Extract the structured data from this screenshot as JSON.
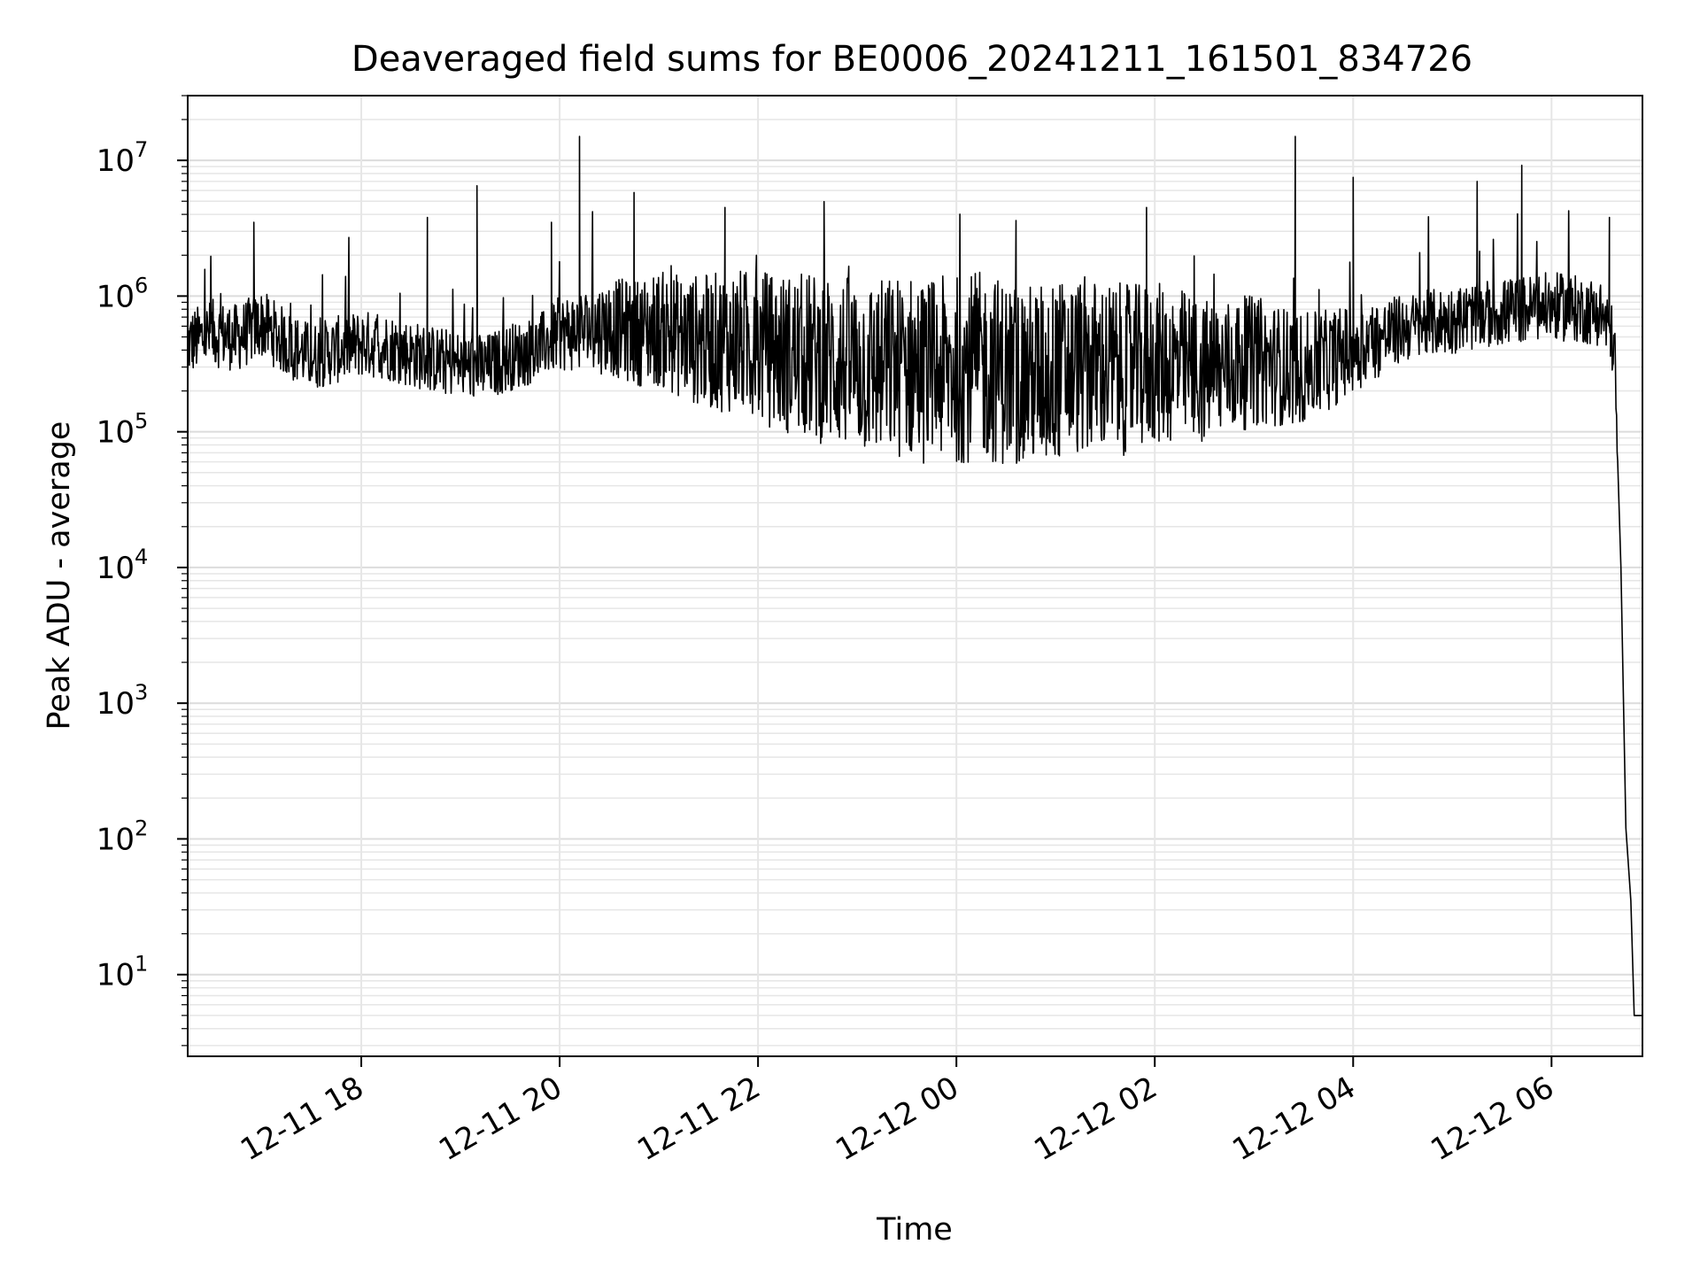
{
  "chart_data": {
    "type": "line",
    "title": "Deaveraged field sums for BE0006_20241211_161501_834726",
    "xlabel": "Time",
    "ylabel": "Peak ADU - average",
    "x_scale": "time",
    "y_scale": "log",
    "xlim": [
      "2024-12-11 16:15",
      "2024-12-12 06:55"
    ],
    "ylim": [
      2.5,
      30000000
    ],
    "grid": true,
    "line_color": "#000000",
    "x_ticks": [
      "2024-12-11 18:00",
      "2024-12-11 20:00",
      "2024-12-11 22:00",
      "2024-12-12 00:00",
      "2024-12-12 02:00",
      "2024-12-12 04:00",
      "2024-12-12 06:00"
    ],
    "x_tick_labels": [
      "12-11 18",
      "12-11 20",
      "12-11 22",
      "12-12 00",
      "12-12 02",
      "12-12 04",
      "12-12 06"
    ],
    "y_ticks": [
      10,
      100,
      1000,
      10000,
      100000,
      1000000,
      10000000
    ],
    "y_tick_labels": [
      {
        "base": "10",
        "exp": "1"
      },
      {
        "base": "10",
        "exp": "2"
      },
      {
        "base": "10",
        "exp": "3"
      },
      {
        "base": "10",
        "exp": "4"
      },
      {
        "base": "10",
        "exp": "5"
      },
      {
        "base": "10",
        "exp": "6"
      },
      {
        "base": "10",
        "exp": "7"
      }
    ],
    "series": [
      {
        "x": [
          "2024-12-11 16:15",
          "2024-12-11 16:30",
          "2024-12-11 16:45",
          "2024-12-11 17:00",
          "2024-12-11 17:15",
          "2024-12-11 17:30",
          "2024-12-11 17:45",
          "2024-12-11 18:00",
          "2024-12-11 18:15",
          "2024-12-11 18:30",
          "2024-12-11 18:45",
          "2024-12-11 19:00",
          "2024-12-11 19:15",
          "2024-12-11 19:30",
          "2024-12-11 19:45",
          "2024-12-11 20:00",
          "2024-12-11 20:15",
          "2024-12-11 20:30",
          "2024-12-11 20:45",
          "2024-12-11 21:00",
          "2024-12-11 21:15",
          "2024-12-11 21:30",
          "2024-12-11 21:45",
          "2024-12-11 22:00",
          "2024-12-11 22:15",
          "2024-12-11 22:30",
          "2024-12-11 22:45",
          "2024-12-11 23:00",
          "2024-12-11 23:15",
          "2024-12-11 23:30",
          "2024-12-11 23:45",
          "2024-12-12 00:00",
          "2024-12-12 00:15",
          "2024-12-12 00:30",
          "2024-12-12 00:45",
          "2024-12-12 01:00",
          "2024-12-12 01:15",
          "2024-12-12 01:30",
          "2024-12-12 01:45",
          "2024-12-12 02:00",
          "2024-12-12 02:15",
          "2024-12-12 02:30",
          "2024-12-12 02:45",
          "2024-12-12 03:00",
          "2024-12-12 03:15",
          "2024-12-12 03:30",
          "2024-12-12 03:45",
          "2024-12-12 04:00",
          "2024-12-12 04:15",
          "2024-12-12 04:30",
          "2024-12-12 04:45",
          "2024-12-12 05:00",
          "2024-12-12 05:15",
          "2024-12-12 05:30",
          "2024-12-12 05:45",
          "2024-12-12 06:00",
          "2024-12-12 06:15",
          "2024-12-12 06:30",
          "2024-12-12 06:38",
          "2024-12-12 06:42",
          "2024-12-12 06:45",
          "2024-12-12 06:48",
          "2024-12-12 06:50",
          "2024-12-12 06:55"
        ],
        "y": [
          500000,
          600000,
          550000,
          700000,
          500000,
          400000,
          450000,
          500000,
          480000,
          420000,
          380000,
          350000,
          330000,
          400000,
          450000,
          600000,
          650000,
          700000,
          650000,
          700000,
          620000,
          580000,
          600000,
          550000,
          500000,
          480000,
          450000,
          420000,
          400000,
          420000,
          380000,
          400000,
          420000,
          380000,
          350000,
          380000,
          420000,
          400000,
          380000,
          420000,
          400000,
          350000,
          380000,
          420000,
          380000,
          350000,
          400000,
          480000,
          550000,
          650000,
          700000,
          750000,
          800000,
          850000,
          900000,
          950000,
          900000,
          850000,
          500000,
          10000,
          120,
          35,
          5,
          5
        ]
      }
    ],
    "spikes": {
      "x": [
        "2024-12-11 16:55",
        "2024-12-11 18:40",
        "2024-12-11 19:10",
        "2024-12-11 19:55",
        "2024-12-11 20:12",
        "2024-12-11 20:45",
        "2024-12-11 21:40",
        "2024-12-12 01:55",
        "2024-12-12 03:25",
        "2024-12-12 04:00",
        "2024-12-12 05:15",
        "2024-12-12 05:42",
        "2024-12-12 06:35"
      ],
      "y": [
        3500000,
        3800000,
        6500000,
        3500000,
        15000000,
        5800000,
        4500000,
        4500000,
        15000000,
        7500000,
        7000000,
        9200000,
        3800000
      ]
    }
  }
}
